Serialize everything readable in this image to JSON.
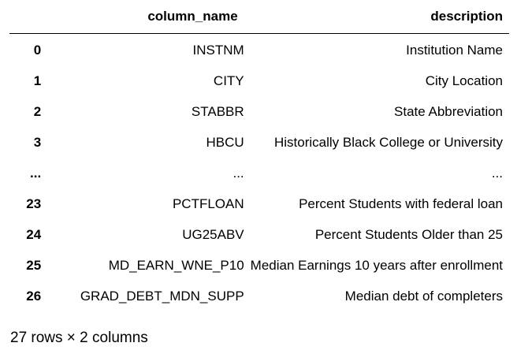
{
  "table": {
    "columns": [
      "",
      "column_name",
      "description"
    ],
    "rows": [
      {
        "index": "0",
        "column_name": "INSTNM",
        "description": "Institution Name"
      },
      {
        "index": "1",
        "column_name": "CITY",
        "description": "City Location"
      },
      {
        "index": "2",
        "column_name": "STABBR",
        "description": "State Abbreviation"
      },
      {
        "index": "3",
        "column_name": "HBCU",
        "description": "Historically Black College or University"
      },
      {
        "index": "...",
        "column_name": "...",
        "description": "..."
      },
      {
        "index": "23",
        "column_name": "PCTFLOAN",
        "description": "Percent Students with federal loan"
      },
      {
        "index": "24",
        "column_name": "UG25ABV",
        "description": "Percent Students Older than 25"
      },
      {
        "index": "25",
        "column_name": "MD_EARN_WNE_P10",
        "description": "Median Earnings 10 years after enrollment"
      },
      {
        "index": "26",
        "column_name": "GRAD_DEBT_MDN_SUPP",
        "description": "Median debt of completers"
      }
    ]
  },
  "footer": {
    "shape_text": "27 rows × 2 columns"
  }
}
